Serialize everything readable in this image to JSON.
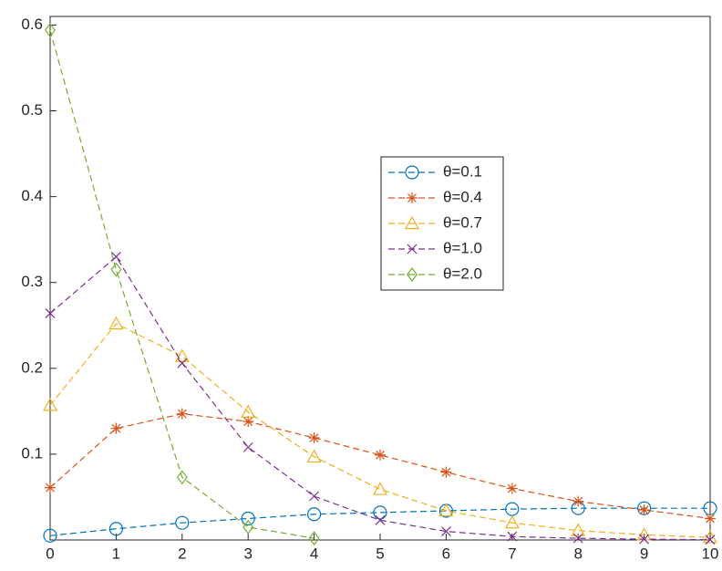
{
  "chart_data": {
    "type": "line",
    "x": [
      0,
      1,
      2,
      3,
      4,
      5,
      6,
      7,
      8,
      9,
      10
    ],
    "xlim": [
      0,
      10
    ],
    "xticks": [
      0,
      1,
      2,
      3,
      4,
      5,
      6,
      7,
      8,
      9,
      10
    ],
    "ylim": [
      0,
      0.61
    ],
    "yticks": [
      0.1,
      0.2,
      0.3,
      0.4,
      0.5,
      0.6
    ],
    "grid": false,
    "legend": "center-right",
    "series": [
      {
        "name": "θ=0.1",
        "color": "#0072BD",
        "marker": "circle",
        "values": [
          0.005,
          0.013,
          0.02,
          0.025,
          0.03,
          0.032,
          0.034,
          0.036,
          0.037,
          0.037,
          0.037
        ]
      },
      {
        "name": "θ=0.4",
        "color": "#D95319",
        "marker": "star",
        "values": [
          0.061,
          0.13,
          0.147,
          0.138,
          0.119,
          0.099,
          0.079,
          0.06,
          0.045,
          0.035,
          0.025
        ]
      },
      {
        "name": "θ=0.7",
        "color": "#EDB120",
        "marker": "triangle",
        "values": [
          0.157,
          0.252,
          0.214,
          0.149,
          0.097,
          0.059,
          0.034,
          0.02,
          0.011,
          0.006,
          0.003
        ]
      },
      {
        "name": "θ=1.0",
        "color": "#7E2F8E",
        "marker": "x",
        "values": [
          0.264,
          0.33,
          0.206,
          0.108,
          0.051,
          0.023,
          0.01,
          0.004,
          0.002,
          0.001,
          0.0003
        ]
      },
      {
        "name": "θ=2.0",
        "color": "#77AC30",
        "marker": "diamond",
        "values": [
          0.594,
          0.315,
          0.073,
          0.015,
          0.002,
          null,
          null,
          null,
          null,
          null,
          null
        ]
      }
    ]
  }
}
